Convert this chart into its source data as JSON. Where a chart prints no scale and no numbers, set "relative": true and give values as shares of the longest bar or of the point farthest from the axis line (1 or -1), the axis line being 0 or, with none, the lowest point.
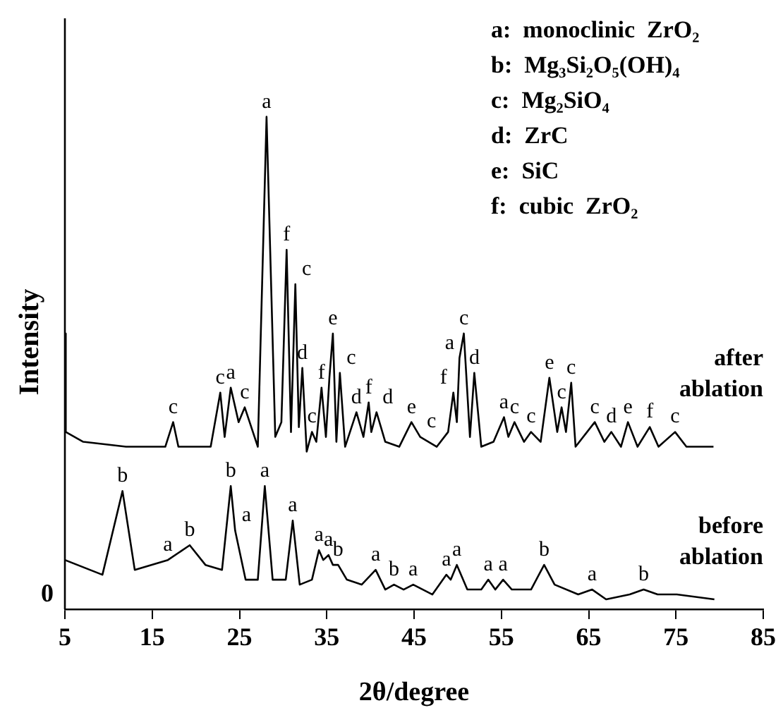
{
  "chart_data": {
    "type": "line",
    "relative": true,
    "xlabel": "2θ/degree",
    "ylabel": "Intensity",
    "xlim": [
      5,
      85
    ],
    "xticks": [
      5,
      15,
      25,
      35,
      45,
      55,
      65,
      75,
      85
    ],
    "grid": false,
    "marker": "none",
    "line_style": "solid",
    "series": [
      {
        "name": "after ablation",
        "color": "#000000",
        "x": [
          5.0,
          5.1,
          7.1,
          12.0,
          16.5,
          17.4,
          18.0,
          21.7,
          22.8,
          23.3,
          24.0,
          24.9,
          25.6,
          27.1,
          28.1,
          29.1,
          29.8,
          30.4,
          30.9,
          31.4,
          31.8,
          32.2,
          32.7,
          33.3,
          33.8,
          34.4,
          34.9,
          35.3,
          35.7,
          36.1,
          36.5,
          37.1,
          38.4,
          39.2,
          39.8,
          40.1,
          40.7,
          41.7,
          43.3,
          44.7,
          45.7,
          47.6,
          48.9,
          49.5,
          49.9,
          50.2,
          50.7,
          51.4,
          51.9,
          52.7,
          54.1,
          55.3,
          55.8,
          56.5,
          57.6,
          58.4,
          59.5,
          60.5,
          61.4,
          61.9,
          62.4,
          63.0,
          63.5,
          65.7,
          66.8,
          67.6,
          68.7,
          69.5,
          70.6,
          72.0,
          73.0,
          74.9,
          76.2,
          79.3
        ],
        "values": [
          0.56,
          0.36,
          0.34,
          0.33,
          0.33,
          0.38,
          0.33,
          0.33,
          0.44,
          0.35,
          0.45,
          0.38,
          0.41,
          0.33,
          1,
          0.35,
          0.38,
          0.73,
          0.36,
          0.66,
          0.37,
          0.49,
          0.32,
          0.36,
          0.34,
          0.45,
          0.35,
          0.47,
          0.56,
          0.34,
          0.48,
          0.33,
          0.4,
          0.35,
          0.42,
          0.36,
          0.4,
          0.34,
          0.33,
          0.38,
          0.35,
          0.33,
          0.36,
          0.44,
          0.38,
          0.51,
          0.56,
          0.35,
          0.48,
          0.33,
          0.34,
          0.39,
          0.35,
          0.38,
          0.34,
          0.36,
          0.34,
          0.47,
          0.36,
          0.41,
          0.36,
          0.46,
          0.33,
          0.38,
          0.34,
          0.36,
          0.33,
          0.38,
          0.33,
          0.37,
          0.33,
          0.36,
          0.33,
          0.33
        ]
      },
      {
        "name": "before ablation",
        "color": "#000000",
        "x": [
          5.0,
          9.3,
          11.6,
          13.0,
          16.8,
          19.3,
          21.1,
          23.0,
          24.0,
          24.5,
          25.7,
          27.1,
          27.9,
          28.8,
          30.3,
          31.1,
          31.9,
          33.3,
          34.1,
          34.6,
          35.2,
          35.7,
          36.3,
          37.3,
          39.0,
          40.6,
          41.7,
          42.7,
          43.8,
          44.9,
          47.1,
          48.7,
          49.2,
          49.9,
          51.1,
          52.7,
          53.5,
          54.3,
          55.2,
          56.2,
          58.4,
          59.9,
          61.1,
          63.8,
          65.4,
          67.0,
          69.7,
          71.3,
          72.9,
          75.1,
          79.4
        ],
        "values": [
          0.1,
          0.07,
          0.24,
          0.08,
          0.1,
          0.13,
          0.09,
          0.08,
          0.25,
          0.16,
          0.06,
          0.06,
          0.25,
          0.06,
          0.06,
          0.18,
          0.05,
          0.06,
          0.12,
          0.1,
          0.11,
          0.09,
          0.09,
          0.06,
          0.05,
          0.08,
          0.04,
          0.05,
          0.04,
          0.05,
          0.03,
          0.07,
          0.06,
          0.09,
          0.04,
          0.04,
          0.06,
          0.04,
          0.06,
          0.04,
          0.04,
          0.09,
          0.05,
          0.03,
          0.04,
          0.02,
          0.03,
          0.04,
          0.03,
          0.03,
          0.02
        ]
      }
    ],
    "annotations": [
      "a:  monoclinic  ZrO₂",
      "b:  Mg₃Si₂O₅(OH)₄",
      "c:  Mg₂SiO₄",
      "d:  ZrC",
      "e:  SiC",
      "f:  cubic  ZrO₂",
      "0",
      {
        "text": "c",
        "x": 17.4,
        "y": 0.38
      },
      {
        "text": "c",
        "x": 22.8,
        "y": 0.44
      },
      {
        "text": "a",
        "x": 24.0,
        "y": 0.45
      },
      {
        "text": "c",
        "x": 25.6,
        "y": 0.41
      },
      {
        "text": "a",
        "x": 28.1,
        "y": 1
      },
      {
        "text": "f",
        "x": 30.4,
        "y": 0.73
      },
      {
        "text": "c",
        "x": 31.4,
        "y": 0.66
      },
      {
        "text": "d",
        "x": 32.2,
        "y": 0.49
      },
      {
        "text": "c",
        "x": 33.3,
        "y": 0.36
      },
      {
        "text": "f",
        "x": 34.4,
        "y": 0.45
      },
      {
        "text": "e",
        "x": 35.7,
        "y": 0.56
      },
      {
        "text": "c",
        "x": 36.5,
        "y": 0.48
      },
      {
        "text": "d",
        "x": 38.4,
        "y": 0.4
      },
      {
        "text": "f",
        "x": 39.8,
        "y": 0.42
      },
      {
        "text": "d",
        "x": 40.7,
        "y": 0.4
      },
      {
        "text": "e",
        "x": 44.7,
        "y": 0.38
      },
      {
        "text": "c",
        "x": 45.7,
        "y": 0.35
      },
      {
        "text": "f",
        "x": 49.5,
        "y": 0.44
      },
      {
        "text": "a",
        "x": 50.2,
        "y": 0.51
      },
      {
        "text": "c",
        "x": 50.7,
        "y": 0.56
      },
      {
        "text": "d",
        "x": 51.9,
        "y": 0.48
      },
      {
        "text": "a",
        "x": 55.3,
        "y": 0.39
      },
      {
        "text": "c",
        "x": 56.5,
        "y": 0.38
      },
      {
        "text": "c",
        "x": 58.4,
        "y": 0.36
      },
      {
        "text": "e",
        "x": 60.5,
        "y": 0.47
      },
      {
        "text": "c",
        "x": 61.9,
        "y": 0.41
      },
      {
        "text": "c",
        "x": 63.0,
        "y": 0.46
      },
      {
        "text": "c",
        "x": 65.7,
        "y": 0.38
      },
      {
        "text": "d",
        "x": 67.6,
        "y": 0.36
      },
      {
        "text": "e",
        "x": 69.5,
        "y": 0.38
      },
      {
        "text": "f",
        "x": 72.0,
        "y": 0.37
      },
      {
        "text": "c",
        "x": 74.9,
        "y": 0.36
      },
      {
        "text": "b",
        "x": 11.6,
        "y": 0.24
      },
      {
        "text": "a",
        "x": 16.8,
        "y": 0.1
      },
      {
        "text": "b",
        "x": 19.3,
        "y": 0.13
      },
      {
        "text": "b",
        "x": 24.0,
        "y": 0.25
      },
      {
        "text": "a",
        "x": 24.5,
        "y": 0.16
      },
      {
        "text": "a",
        "x": 27.9,
        "y": 0.25
      },
      {
        "text": "a",
        "x": 31.1,
        "y": 0.18
      },
      {
        "text": "a",
        "x": 34.1,
        "y": 0.12
      },
      {
        "text": "a",
        "x": 35.2,
        "y": 0.11
      },
      {
        "text": "b",
        "x": 36.3,
        "y": 0.09
      },
      {
        "text": "a",
        "x": 40.6,
        "y": 0.08
      },
      {
        "text": "b",
        "x": 42.7,
        "y": 0.05
      },
      {
        "text": "a",
        "x": 44.9,
        "y": 0.05
      },
      {
        "text": "a",
        "x": 48.7,
        "y": 0.07
      },
      {
        "text": "a",
        "x": 49.9,
        "y": 0.09
      },
      {
        "text": "a",
        "x": 53.5,
        "y": 0.06
      },
      {
        "text": "a",
        "x": 55.2,
        "y": 0.06
      },
      {
        "text": "b",
        "x": 59.9,
        "y": 0.09
      },
      {
        "text": "a",
        "x": 65.4,
        "y": 0.04
      },
      {
        "text": "b",
        "x": 71.3,
        "y": 0.04
      }
    ]
  }
}
